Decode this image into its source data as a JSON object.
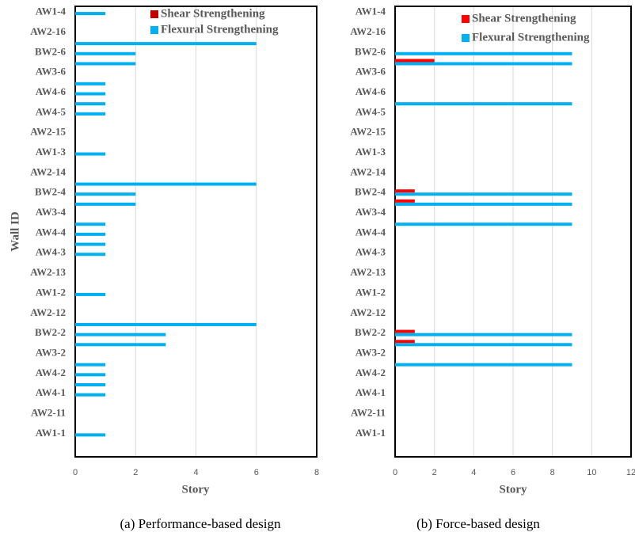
{
  "chart_data": [
    {
      "type": "bar",
      "orientation": "horizontal",
      "caption": "(a) Performance-based design",
      "xlabel": "Story",
      "ylabel": "Wall ID",
      "categories": [
        "AW1-4",
        null,
        "AW2-16",
        null,
        "BW2-6",
        null,
        "AW3-6",
        null,
        "AW4-6",
        null,
        "AW4-5",
        null,
        "AW2-15",
        null,
        "AW1-3",
        null,
        "AW2-14",
        null,
        "BW2-4",
        null,
        "AW3-4",
        null,
        "AW4-4",
        null,
        "AW4-3",
        null,
        "AW2-13",
        null,
        "AW1-2",
        null,
        "AW2-12",
        null,
        "BW2-2",
        null,
        "AW3-2",
        null,
        "AW4-2",
        null,
        "AW4-1",
        null,
        "AW2-11",
        null,
        "AW1-1"
      ],
      "series": [
        {
          "name": "Shear Strengthening",
          "color": "#c00000",
          "values": [
            0,
            0,
            0,
            0,
            0,
            0,
            0,
            0,
            0,
            0,
            0,
            0,
            0,
            0,
            0,
            0,
            0,
            0,
            0,
            0,
            0,
            0,
            0,
            0,
            0,
            0,
            0,
            0,
            0,
            0,
            0,
            0,
            0,
            0,
            0,
            0,
            0,
            0,
            0,
            0,
            0,
            0,
            0
          ]
        },
        {
          "name": "Flexural Strengthening",
          "color": "#00b0f0",
          "values": [
            1,
            0,
            0,
            6,
            2,
            2,
            0,
            1,
            1,
            1,
            1,
            0,
            0,
            0,
            1,
            0,
            0,
            6,
            2,
            2,
            0,
            1,
            1,
            1,
            1,
            0,
            0,
            0,
            1,
            0,
            0,
            6,
            3,
            3,
            0,
            1,
            1,
            1,
            1,
            0,
            0,
            0,
            1
          ]
        }
      ],
      "xlim": [
        0,
        8
      ],
      "xticks": [
        0,
        2,
        4,
        6,
        8
      ],
      "grid": true
    },
    {
      "type": "bar",
      "orientation": "horizontal",
      "caption": "(b) Force-based design",
      "xlabel": "Story",
      "categories": [
        "AW1-4",
        null,
        "AW2-16",
        null,
        "BW2-6",
        null,
        "AW3-6",
        null,
        "AW4-6",
        null,
        "AW4-5",
        null,
        "AW2-15",
        null,
        "AW1-3",
        null,
        "AW2-14",
        null,
        "BW2-4",
        null,
        "AW3-4",
        null,
        "AW4-4",
        null,
        "AW4-3",
        null,
        "AW2-13",
        null,
        "AW1-2",
        null,
        "AW2-12",
        null,
        "BW2-2",
        null,
        "AW3-2",
        null,
        "AW4-2",
        null,
        "AW4-1",
        null,
        "AW2-11",
        null,
        "AW1-1"
      ],
      "series": [
        {
          "name": "Shear Strengthening",
          "color": "#ff0000",
          "values": [
            0,
            0,
            0,
            0,
            0,
            2,
            0,
            0,
            0,
            0,
            0,
            0,
            0,
            0,
            0,
            0,
            0,
            0,
            1,
            1,
            0,
            0,
            0,
            0,
            0,
            0,
            0,
            0,
            0,
            0,
            0,
            0,
            1,
            1,
            0,
            0,
            0,
            0,
            0,
            0,
            0,
            0,
            0
          ]
        },
        {
          "name": "Flexural Strengthening",
          "color": "#00b0f0",
          "values": [
            0,
            0,
            0,
            0,
            9,
            9,
            0,
            0,
            0,
            9,
            0,
            0,
            0,
            0,
            0,
            0,
            0,
            0,
            9,
            9,
            0,
            9,
            0,
            0,
            0,
            0,
            0,
            0,
            0,
            0,
            0,
            0,
            9,
            9,
            0,
            9,
            0,
            0,
            0,
            0,
            0,
            0,
            0
          ]
        }
      ],
      "xlim": [
        0,
        12
      ],
      "xticks": [
        0,
        2,
        4,
        6,
        8,
        10,
        12
      ],
      "grid": true
    }
  ]
}
